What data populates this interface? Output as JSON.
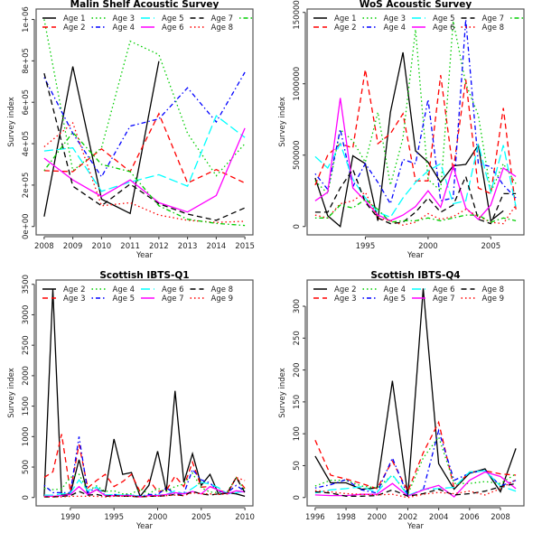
{
  "colors": [
    "#000000",
    "#ff0000",
    "#00cd00",
    "#0000ff",
    "#00ffff",
    "#ff00ff"
  ],
  "line_types": [
    "solid",
    "dashed",
    "dotted",
    "dotdash",
    "longdash"
  ],
  "chart_data": [
    {
      "type": "line",
      "title": "Malin Shelf Acoustic Survey",
      "xlabel": "Year",
      "ylabel": "Survey index",
      "x": [
        2008,
        2009,
        2010,
        2011,
        2012,
        2013,
        2014,
        2015
      ],
      "xlim": [
        2008,
        2015
      ],
      "ylim": [
        0,
        1010000
      ],
      "xticks": [
        2008,
        2009,
        2010,
        2011,
        2012,
        2013,
        2014,
        2015
      ],
      "xtick_labels": [
        "2008",
        "2009",
        "2010",
        "2011",
        "2012",
        "2013",
        "2014",
        "2015"
      ],
      "yticks": [
        0,
        200000,
        400000,
        600000,
        800000,
        1000000
      ],
      "ytick_labels": [
        "0e+00",
        "2e+05",
        "4e+05",
        "6e+05",
        "8e+05",
        "1e+06"
      ],
      "legend_position": "top",
      "series": [
        {
          "name": "Age 1",
          "values": [
            48000,
            773000,
            132000,
            63000,
            798000,
            null,
            null,
            null
          ]
        },
        {
          "name": "Age 2",
          "values": [
            270000,
            265000,
            375000,
            265000,
            545000,
            210000,
            275000,
            210000
          ]
        },
        {
          "name": "Age 3",
          "values": [
            1000000,
            270000,
            380000,
            895000,
            830000,
            450000,
            245000,
            400000
          ]
        },
        {
          "name": "Age 4",
          "values": [
            720000,
            450000,
            240000,
            485000,
            520000,
            670000,
            505000,
            745000
          ]
        },
        {
          "name": "Age 5",
          "values": [
            365000,
            380000,
            170000,
            215000,
            250000,
            195000,
            535000,
            430000
          ]
        },
        {
          "name": "Age 6",
          "values": [
            330000,
            225000,
            145000,
            225000,
            115000,
            70000,
            150000,
            475000
          ]
        },
        {
          "name": "Age 7",
          "values": [
            740000,
            195000,
            100000,
            205000,
            110000,
            60000,
            30000,
            90000
          ]
        },
        {
          "name": "Age 8",
          "values": [
            385000,
            500000,
            100000,
            115000,
            55000,
            30000,
            20000,
            25000
          ]
        },
        {
          "values": [
            270000,
            455000,
            300000,
            265000,
            100000,
            35000,
            15000,
            5000
          ]
        }
      ]
    },
    {
      "type": "line",
      "title": "WoS Acoustic Survey",
      "xlabel": "Year",
      "ylabel": "Survey index",
      "x": [
        1991,
        1992,
        1993,
        1994,
        1995,
        1996,
        1997,
        1998,
        1999,
        2000,
        2001,
        2002,
        2003,
        2004,
        2005,
        2006,
        2007
      ],
      "xlim": [
        1991,
        2007
      ],
      "ylim": [
        0,
        1465000
      ],
      "xticks": [
        1995,
        2000,
        2005
      ],
      "xtick_labels": [
        "1995",
        "2000",
        "2005"
      ],
      "yticks": [
        0,
        500000,
        1000000,
        1500000
      ],
      "ytick_labels": [
        "0",
        "500000",
        "1000000",
        "1500000"
      ],
      "legend_position": "top",
      "series": [
        {
          "name": "Age 1",
          "values": [
            340000,
            75000,
            0,
            495000,
            440000,
            40000,
            800000,
            1220000,
            530000,
            450000,
            310000,
            425000,
            435000,
            570000,
            40000,
            110000,
            null
          ]
        },
        {
          "name": "Age 2",
          "values": [
            290000,
            500000,
            580000,
            550000,
            1100000,
            580000,
            650000,
            790000,
            320000,
            320000,
            1060000,
            390000,
            1030000,
            270000,
            230000,
            830000,
            120000
          ]
        },
        {
          "name": "Age 3",
          "values": [
            320000,
            230000,
            680000,
            600000,
            450000,
            800000,
            290000,
            620000,
            1380000,
            330000,
            250000,
            1440000,
            1000000,
            780000,
            240000,
            440000,
            300000
          ]
        },
        {
          "name": "Age 4",
          "values": [
            370000,
            260000,
            680000,
            280000,
            440000,
            310000,
            160000,
            470000,
            440000,
            890000,
            180000,
            200000,
            1450000,
            440000,
            420000,
            290000,
            200000
          ]
        },
        {
          "name": "Age 5",
          "values": [
            490000,
            410000,
            580000,
            330000,
            200000,
            100000,
            65000,
            200000,
            310000,
            390000,
            440000,
            160000,
            180000,
            580000,
            240000,
            570000,
            140000
          ]
        },
        {
          "name": "Age 6",
          "values": [
            180000,
            240000,
            900000,
            270000,
            180000,
            80000,
            40000,
            80000,
            140000,
            250000,
            135000,
            420000,
            130000,
            50000,
            150000,
            410000,
            350000
          ]
        },
        {
          "name": "Age 7",
          "values": [
            100000,
            100000,
            270000,
            400000,
            170000,
            60000,
            20000,
            30000,
            100000,
            200000,
            100000,
            150000,
            350000,
            50000,
            20000,
            230000,
            230000
          ]
        },
        {
          "name": "Age 8",
          "values": [
            80000,
            60000,
            160000,
            180000,
            240000,
            60000,
            40000,
            10000,
            30000,
            90000,
            50000,
            70000,
            120000,
            70000,
            30000,
            20000,
            150000
          ]
        },
        {
          "values": [
            60000,
            60000,
            150000,
            130000,
            190000,
            120000,
            30000,
            40000,
            40000,
            60000,
            40000,
            60000,
            80000,
            80000,
            30000,
            60000,
            40000
          ]
        }
      ]
    },
    {
      "type": "line",
      "title": "Scottish IBTS-Q1",
      "xlabel": "Year",
      "ylabel": "Survey index",
      "x": [
        1987,
        1988,
        1989,
        1990,
        1991,
        1992,
        1993,
        1994,
        1995,
        1996,
        1997,
        1998,
        1999,
        2000,
        2001,
        2002,
        2003,
        2004,
        2005,
        2006,
        2007,
        2008,
        2009,
        2010
      ],
      "xlim": [
        1987,
        2010
      ],
      "ylim": [
        0,
        3433
      ],
      "xticks": [
        1990,
        1995,
        2000,
        2005,
        2010
      ],
      "xtick_labels": [
        "1990",
        "1995",
        "2000",
        "2005",
        "2010"
      ],
      "yticks": [
        0,
        500,
        1000,
        1500,
        2000,
        2500,
        3000,
        3500
      ],
      "ytick_labels": [
        "0",
        "500",
        "1000",
        "1500",
        "2000",
        "2500",
        "3000",
        "3500"
      ],
      "legend_position": "top",
      "series": [
        {
          "name": "Age 2",
          "values": [
            20,
            3420,
            40,
            60,
            620,
            50,
            130,
            100,
            960,
            380,
            410,
            20,
            200,
            760,
            100,
            1750,
            250,
            720,
            200,
            380,
            50,
            80,
            60,
            20
          ]
        },
        {
          "name": "Age 3",
          "values": [
            330,
            420,
            1040,
            100,
            870,
            160,
            280,
            380,
            180,
            260,
            380,
            90,
            290,
            100,
            120,
            350,
            180,
            580,
            170,
            180,
            120,
            80,
            330,
            150
          ]
        },
        {
          "name": "Age 4",
          "values": [
            150,
            130,
            140,
            330,
            380,
            110,
            190,
            100,
            110,
            60,
            60,
            140,
            60,
            150,
            100,
            180,
            220,
            400,
            160,
            90,
            80,
            100,
            320,
            120
          ]
        },
        {
          "name": "Age 5",
          "values": [
            200,
            80,
            80,
            80,
            1000,
            80,
            170,
            40,
            50,
            40,
            40,
            20,
            50,
            50,
            160,
            60,
            60,
            460,
            290,
            240,
            100,
            80,
            200,
            100
          ]
        },
        {
          "name": "Age 6",
          "values": [
            40,
            40,
            60,
            70,
            290,
            110,
            170,
            40,
            50,
            40,
            40,
            20,
            30,
            40,
            50,
            110,
            60,
            150,
            250,
            220,
            160,
            60,
            80,
            100
          ]
        },
        {
          "name": "Age 7",
          "values": [
            20,
            20,
            30,
            50,
            180,
            50,
            130,
            30,
            30,
            30,
            30,
            10,
            30,
            30,
            50,
            80,
            60,
            100,
            60,
            180,
            120,
            60,
            110,
            90
          ]
        },
        {
          "name": "Age 8",
          "values": [
            10,
            10,
            20,
            30,
            100,
            40,
            50,
            20,
            30,
            20,
            20,
            10,
            20,
            20,
            30,
            50,
            30,
            100,
            60,
            40,
            60,
            70,
            330,
            80
          ]
        },
        {
          "name": "Age 9",
          "values": [
            10,
            10,
            10,
            20,
            20,
            20,
            20,
            10,
            20,
            20,
            20,
            10,
            20,
            20,
            30,
            40,
            30,
            80,
            60,
            60,
            50,
            60,
            330,
            280
          ]
        }
      ]
    },
    {
      "type": "line",
      "title": "Scottish IBTS-Q4",
      "xlabel": "Year",
      "ylabel": "Survey index",
      "x": [
        1996,
        1997,
        1998,
        1999,
        2000,
        2001,
        2002,
        2003,
        2004,
        2005,
        2006,
        2007,
        2008,
        2009
      ],
      "xlim": [
        1996,
        2009
      ],
      "ylim": [
        0,
        328
      ],
      "xticks": [
        1996,
        1998,
        2000,
        2002,
        2004,
        2006,
        2008
      ],
      "xtick_labels": [
        "1996",
        "1998",
        "2000",
        "2002",
        "2004",
        "2006",
        "2008"
      ],
      "yticks": [
        0,
        50,
        100,
        150,
        200,
        250,
        300
      ],
      "ytick_labels": [
        "0",
        "50",
        "100",
        "150",
        "200",
        "250",
        "300"
      ],
      "legend_position": "top",
      "series": [
        {
          "name": "Age 2",
          "values": [
            65,
            23,
            23,
            13,
            15,
            183,
            3,
            328,
            53,
            13,
            38,
            45,
            9,
            77
          ]
        },
        {
          "name": "Age 3",
          "values": [
            90,
            35,
            29,
            22,
            14,
            57,
            10,
            70,
            118,
            15,
            40,
            42,
            37,
            35
          ]
        },
        {
          "name": "Age 4",
          "values": [
            18,
            27,
            27,
            18,
            15,
            35,
            5,
            62,
            95,
            22,
            22,
            25,
            22,
            37
          ]
        },
        {
          "name": "Age 5",
          "values": [
            15,
            20,
            28,
            12,
            7,
            62,
            3,
            12,
            105,
            27,
            38,
            43,
            18,
            27
          ]
        },
        {
          "name": "Age 6",
          "values": [
            7,
            12,
            14,
            17,
            8,
            36,
            3,
            13,
            14,
            16,
            40,
            42,
            18,
            10
          ]
        },
        {
          "name": "Age 7",
          "values": [
            4,
            3,
            3,
            5,
            5,
            22,
            2,
            12,
            19,
            1,
            27,
            40,
            33,
            14
          ]
        },
        {
          "name": "Age 8",
          "values": [
            9,
            7,
            2,
            2,
            3,
            12,
            2,
            6,
            13,
            4,
            6,
            10,
            17,
            22
          ]
        },
        {
          "name": "Age 9",
          "values": [
            11,
            9,
            6,
            5,
            4,
            5,
            0,
            5,
            8,
            6,
            10,
            4,
            14,
            28
          ]
        }
      ]
    }
  ]
}
